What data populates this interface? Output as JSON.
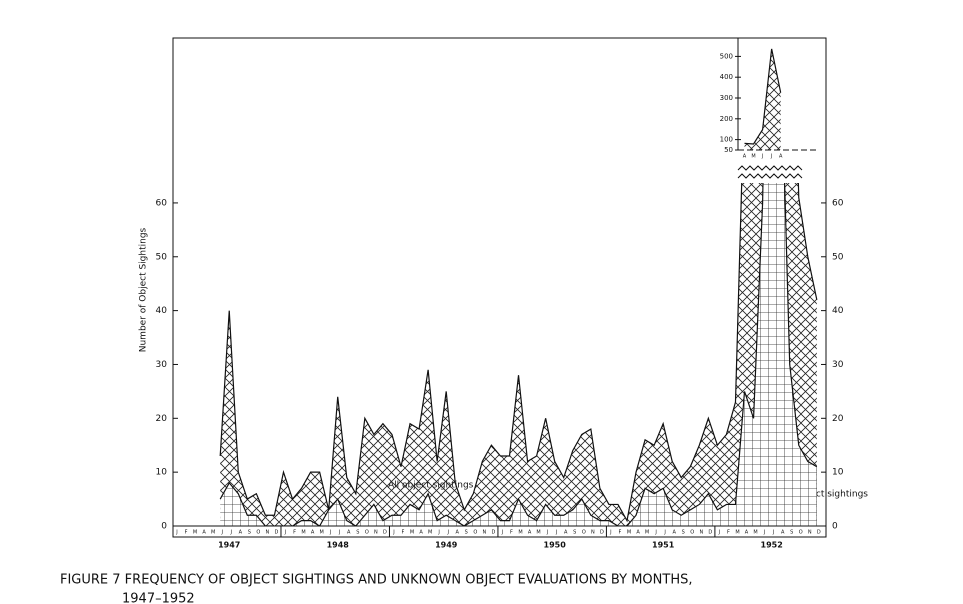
{
  "chart_data": [
    {
      "type": "area",
      "title": "FIGURE 7 FREQUENCY OF OBJECT SIGHTINGS AND UNKNOWN OBJECT EVALUATIONS BY MONTHS,",
      "subtitle": "1947–1952",
      "y_label": "Number of Object Sightings",
      "categories": [
        "J",
        "F",
        "M",
        "A",
        "M",
        "J",
        "J",
        "A",
        "S",
        "O",
        "N",
        "D",
        "J",
        "F",
        "M",
        "A",
        "M",
        "J",
        "J",
        "A",
        "S",
        "O",
        "N",
        "D",
        "J",
        "F",
        "M",
        "A",
        "M",
        "J",
        "J",
        "A",
        "S",
        "O",
        "N",
        "D",
        "J",
        "F",
        "M",
        "A",
        "M",
        "J",
        "J",
        "A",
        "S",
        "O",
        "N",
        "D",
        "J",
        "F",
        "M",
        "A",
        "M",
        "J",
        "J",
        "A",
        "S",
        "O",
        "N",
        "D",
        "J",
        "F",
        "M",
        "A",
        "M",
        "J",
        "J",
        "A",
        "S",
        "O",
        "N",
        "D"
      ],
      "years": [
        "1947",
        "1948",
        "1949",
        "1950",
        "1951",
        "1952"
      ],
      "series": [
        {
          "name": "All object sightings",
          "color": "#111111",
          "values": [
            null,
            null,
            null,
            null,
            null,
            13,
            40,
            10,
            5,
            6,
            2,
            2,
            10,
            5,
            7,
            10,
            10,
            3,
            24,
            9,
            6,
            20,
            17,
            19,
            17,
            11,
            19,
            18,
            29,
            12,
            25,
            8,
            3,
            6,
            12,
            15,
            13,
            13,
            28,
            12,
            13,
            20,
            12,
            9,
            14,
            17,
            18,
            7,
            4,
            4,
            1,
            10,
            16,
            15,
            19,
            12,
            9,
            11,
            15,
            20,
            15,
            17,
            23,
            82,
            79,
            148,
            536,
            326,
            124,
            61,
            50,
            42
          ]
        },
        {
          "name": "Unknown object sightings",
          "color": "#111111",
          "values": [
            null,
            null,
            null,
            null,
            null,
            5,
            8,
            6,
            2,
            2,
            0,
            0,
            0,
            0,
            1,
            1,
            0,
            3,
            5,
            1,
            0,
            2,
            4,
            1,
            2,
            2,
            4,
            3,
            6,
            1,
            2,
            1,
            0,
            1,
            2,
            3,
            1,
            1,
            5,
            2,
            1,
            4,
            2,
            2,
            3,
            5,
            2,
            1,
            1,
            0,
            0,
            2,
            7,
            6,
            7,
            3,
            2,
            3,
            4,
            6,
            3,
            4,
            4,
            25,
            20,
            60,
            150,
            90,
            30,
            15,
            12,
            11
          ]
        }
      ],
      "ylim": [
        0,
        65
      ],
      "yticks": [
        0,
        10,
        20,
        30,
        40,
        50,
        60
      ],
      "y2ticks": [
        0,
        10,
        20,
        30,
        40,
        50,
        60
      ]
    },
    {
      "type": "area",
      "categories": [
        "A",
        "M",
        "J",
        "J",
        "A"
      ],
      "values": [
        82,
        79,
        148,
        536,
        326
      ],
      "color": "#111111",
      "ylim": [
        50,
        550
      ],
      "yticks": [
        50,
        100,
        200,
        300,
        400,
        500
      ]
    }
  ]
}
